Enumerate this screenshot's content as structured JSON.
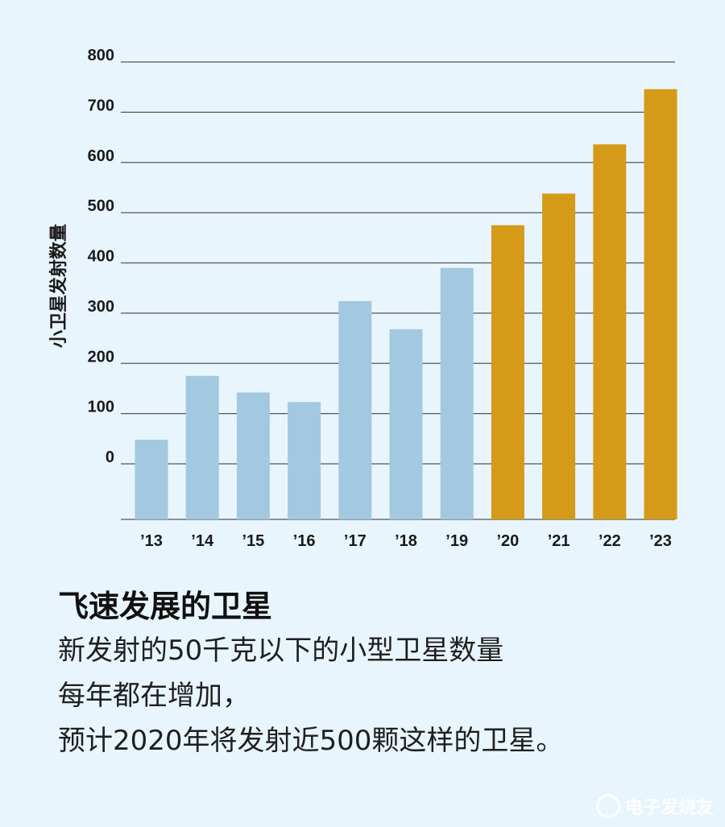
{
  "chart_data": {
    "type": "bar",
    "categories": [
      "’13",
      "’14",
      "’15",
      "’16",
      "’17",
      "’18",
      "’19",
      "’20",
      "’21",
      "’22",
      "’23"
    ],
    "values": [
      48,
      175,
      142,
      123,
      324,
      268,
      390,
      475,
      538,
      636,
      746
    ],
    "yticks": [
      "0",
      "100",
      "200",
      "300",
      "400",
      "500",
      "600",
      "700",
      "800"
    ],
    "ylabel": "小卫星发射数量",
    "ylim": [
      0,
      800
    ],
    "grid": true,
    "colors": {
      "actual": "#a3c9e0",
      "projected": "#d49a18"
    },
    "projected_from_index": 7
  },
  "caption": {
    "title": "飞速发展的卫星",
    "lines": [
      "新发射的50千克以下的小型卫星数量",
      "每年都在增加，",
      "预计2020年将发射近500颗这样的卫星。"
    ]
  },
  "watermark": {
    "text": "电子发烧友"
  }
}
